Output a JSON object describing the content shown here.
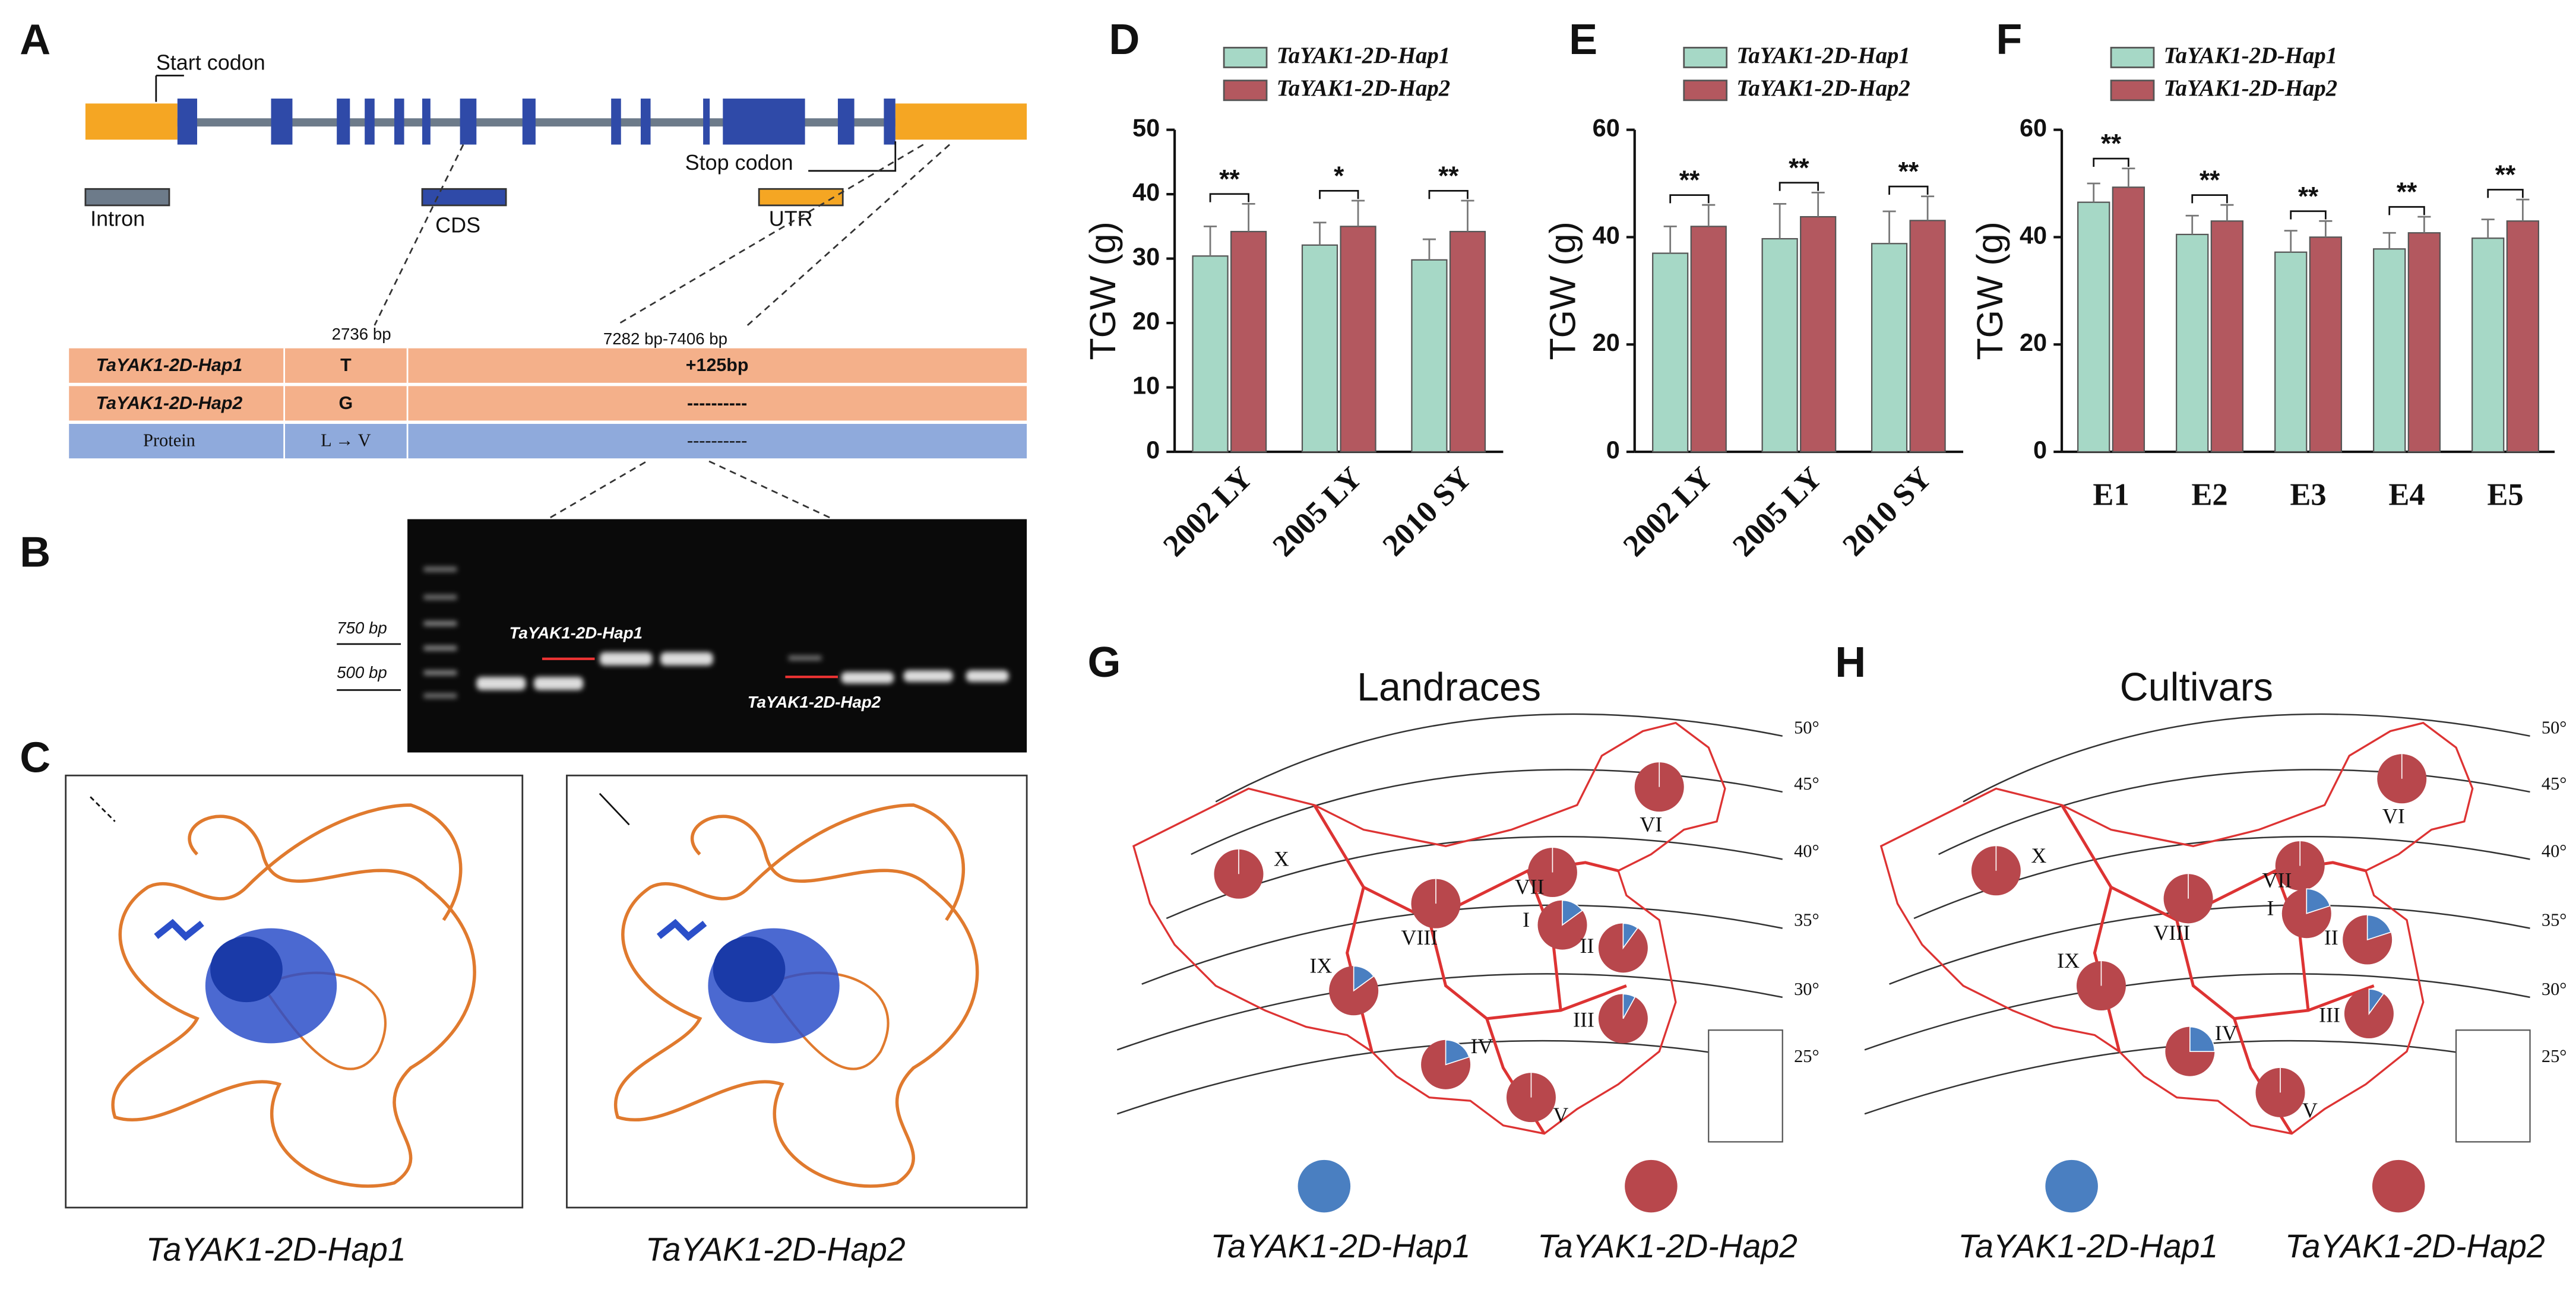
{
  "panel_a": {
    "letter": "A",
    "start_codon": "Start codon",
    "stop_codon": "Stop codon",
    "legend": [
      "Intron",
      "CDS",
      "UTR"
    ],
    "positions": [
      "2736 bp",
      "7282 bp-7406 bp"
    ],
    "table": {
      "rows": [
        [
          "TaYAK1-2D-Hap1",
          "T",
          "+125bp"
        ],
        [
          "TaYAK1-2D-Hap2",
          "G",
          "----------"
        ],
        [
          "Protein",
          "L → V",
          "----------"
        ]
      ]
    }
  },
  "panel_b": {
    "letter": "B",
    "markers": [
      "750 bp",
      "500 bp"
    ],
    "bands": [
      "TaYAK1-2D-Hap1",
      "TaYAK1-2D-Hap2"
    ]
  },
  "panel_c": {
    "letter": "C",
    "captions": [
      "TaYAK1-2D-Hap1",
      "TaYAK1-2D-Hap2"
    ]
  },
  "chart_data": [
    {
      "type": "bar",
      "letter": "D",
      "ylabel": "TGW (g)",
      "categories": [
        "2002 LY",
        "2005 LY",
        "2010 SY"
      ],
      "series": [
        {
          "name": "TaYAK1-2D-Hap1",
          "color": "#a6d8c6",
          "values": [
            30.4,
            32.1,
            29.8
          ],
          "errors": [
            4.6,
            3.5,
            3.2
          ]
        },
        {
          "name": "TaYAK1-2D-Hap2",
          "color": "#b3585f",
          "values": [
            34.2,
            35.0,
            34.2
          ],
          "errors": [
            4.3,
            4.0,
            4.8
          ]
        }
      ],
      "significance": [
        "**",
        "*",
        "**"
      ],
      "ylim": [
        0,
        50
      ],
      "yticks": [
        0,
        10,
        20,
        30,
        40,
        50
      ]
    },
    {
      "type": "bar",
      "letter": "E",
      "ylabel": "TGW (g)",
      "categories": [
        "2002 LY",
        "2005 LY",
        "2010 SY"
      ],
      "series": [
        {
          "name": "TaYAK1-2D-Hap1",
          "color": "#a6d8c6",
          "values": [
            37.0,
            39.7,
            38.8
          ],
          "errors": [
            5.0,
            6.5,
            6.0
          ]
        },
        {
          "name": "TaYAK1-2D-Hap2",
          "color": "#b3585f",
          "values": [
            42.0,
            43.8,
            43.1
          ],
          "errors": [
            4.0,
            4.5,
            4.5
          ]
        }
      ],
      "significance": [
        "**",
        "**",
        "**"
      ],
      "ylim": [
        0,
        60
      ],
      "yticks": [
        0,
        20,
        40,
        60
      ]
    },
    {
      "type": "bar",
      "letter": "F",
      "ylabel": "TGW (g)",
      "categories": [
        "E1",
        "E2",
        "E3",
        "E4",
        "E5"
      ],
      "series": [
        {
          "name": "TaYAK1-2D-Hap1",
          "color": "#a6d8c6",
          "values": [
            46.5,
            40.5,
            37.2,
            37.8,
            39.8
          ],
          "errors": [
            3.5,
            3.5,
            4.0,
            3.0,
            3.5
          ]
        },
        {
          "name": "TaYAK1-2D-Hap2",
          "color": "#b3585f",
          "values": [
            49.3,
            43.0,
            40.0,
            40.8,
            43.0
          ],
          "errors": [
            3.5,
            3.0,
            3.0,
            3.0,
            4.0
          ]
        }
      ],
      "significance": [
        "**",
        "**",
        "**",
        "**",
        "**"
      ],
      "ylim": [
        0,
        60
      ],
      "yticks": [
        0,
        20,
        40,
        60
      ]
    }
  ],
  "maps": [
    {
      "letter": "G",
      "title": "Landraces",
      "latitudes": [
        "50°",
        "45°",
        "40°",
        "35°",
        "30°",
        "25°"
      ],
      "colors": [
        "#4a7fc1",
        "#b8474c"
      ],
      "legend": [
        "TaYAK1-2D-Hap1",
        "TaYAK1-2D-Hap2"
      ],
      "regions": [
        {
          "label": "X",
          "hap1": 0,
          "hap2": 100
        },
        {
          "label": "VII",
          "hap1": 0,
          "hap2": 100
        },
        {
          "label": "VIII",
          "hap1": 0,
          "hap2": 100
        },
        {
          "label": "I",
          "hap1": 15,
          "hap2": 85
        },
        {
          "label": "II",
          "hap1": 10,
          "hap2": 90
        },
        {
          "label": "IX",
          "hap1": 15,
          "hap2": 85
        },
        {
          "label": "VI",
          "hap1": 0,
          "hap2": 100
        },
        {
          "label": "III",
          "hap1": 8,
          "hap2": 92
        },
        {
          "label": "IV",
          "hap1": 20,
          "hap2": 80
        },
        {
          "label": "V",
          "hap1": 0,
          "hap2": 100
        }
      ]
    },
    {
      "letter": "H",
      "title": "Cultivars",
      "latitudes": [
        "50°",
        "45°",
        "40°",
        "35°",
        "30°",
        "25°"
      ],
      "colors": [
        "#4a7fc1",
        "#b8474c"
      ],
      "legend": [
        "TaYAK1-2D-Hap1",
        "TaYAK1-2D-Hap2"
      ],
      "regions": [
        {
          "label": "X",
          "hap1": 0,
          "hap2": 100
        },
        {
          "label": "VII",
          "hap1": 0,
          "hap2": 100
        },
        {
          "label": "VIII",
          "hap1": 0,
          "hap2": 100
        },
        {
          "label": "I",
          "hap1": 20,
          "hap2": 80
        },
        {
          "label": "II",
          "hap1": 20,
          "hap2": 80
        },
        {
          "label": "IX",
          "hap1": 0,
          "hap2": 100
        },
        {
          "label": "VI",
          "hap1": 0,
          "hap2": 100
        },
        {
          "label": "III",
          "hap1": 10,
          "hap2": 90
        },
        {
          "label": "IV",
          "hap1": 25,
          "hap2": 75
        },
        {
          "label": "V",
          "hap1": 0,
          "hap2": 100
        }
      ]
    }
  ]
}
